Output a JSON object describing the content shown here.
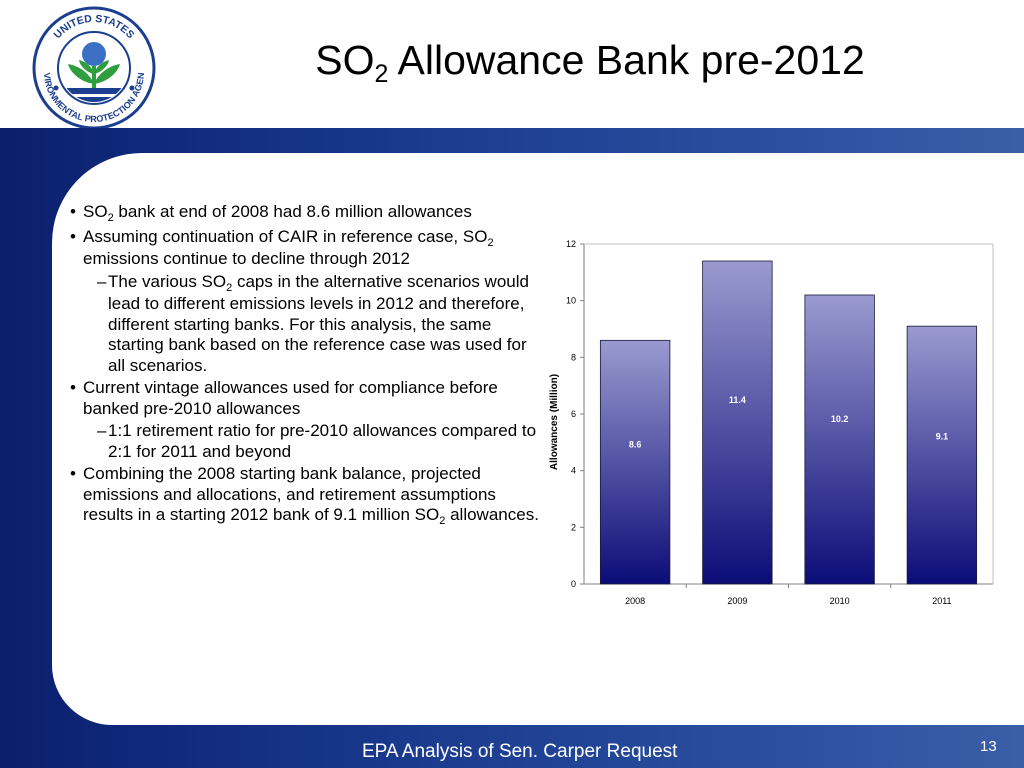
{
  "header": {
    "title_prefix": "SO",
    "title_sub": "2",
    "title_suffix": " Allowance Bank pre-2012",
    "logo": {
      "icon": "epa-seal-icon",
      "ring_text": "UNITED STATES ENVIRONMENTAL PROTECTION AGENCY",
      "colors": {
        "ring": "#1a3f8f",
        "leaf": "#2e9e3e",
        "sky": "#3a6fc4",
        "water": "#1a3f8f"
      }
    }
  },
  "bullets": [
    {
      "level": 1,
      "parts": [
        {
          "t": "SO"
        },
        {
          "sub": "2"
        },
        {
          "t": " bank at end of 2008 had 8.6 million allowances"
        }
      ]
    },
    {
      "level": 1,
      "parts": [
        {
          "t": "Assuming continuation of CAIR in reference case, SO"
        },
        {
          "sub": "2"
        },
        {
          "t": " emissions continue to decline through 2012"
        }
      ]
    },
    {
      "level": 2,
      "parts": [
        {
          "t": "The various SO"
        },
        {
          "sub": "2"
        },
        {
          "t": " caps in the alternative scenarios would lead to different emissions levels in 2012 and therefore, different starting banks.  For this analysis, the same starting bank based on the reference case was used for all scenarios."
        }
      ]
    },
    {
      "level": 1,
      "parts": [
        {
          "t": "Current vintage allowances used for compliance before banked pre-2010 allowances"
        }
      ]
    },
    {
      "level": 2,
      "parts": [
        {
          "t": "1:1 retirement ratio for pre-2010 allowances compared to 2:1 for 2011 and beyond"
        }
      ]
    },
    {
      "level": 1,
      "parts": [
        {
          "t": "Combining the 2008 starting bank balance, projected emissions and allocations, and retirement assumptions results in a starting 2012 bank of 9.1 million SO"
        },
        {
          "sub": "2"
        },
        {
          "t": " allowances."
        }
      ]
    }
  ],
  "bullet_marks": {
    "level1": "•",
    "level2": "–"
  },
  "chart_data": {
    "type": "bar",
    "categories": [
      "2008",
      "2009",
      "2010",
      "2011"
    ],
    "values": [
      8.6,
      11.4,
      10.2,
      9.1
    ],
    "data_labels": [
      "8.6",
      "11.4",
      "10.2",
      "9.1"
    ],
    "title": "",
    "xlabel": "",
    "ylabel": "Allowances (Million)",
    "ylim": [
      0,
      12
    ],
    "yticks": [
      0,
      2,
      4,
      6,
      8,
      10,
      12
    ],
    "grid": false,
    "legend": "none",
    "colors": {
      "bar_top": "#9a9ad0",
      "bar_bottom": "#0c0c78",
      "label": "#ffffff"
    }
  },
  "footer": {
    "text": "EPA Analysis of Sen. Carper Request",
    "page_number": "13"
  },
  "colors": {
    "band": "#1a3a8e",
    "panel": "#ffffff"
  }
}
